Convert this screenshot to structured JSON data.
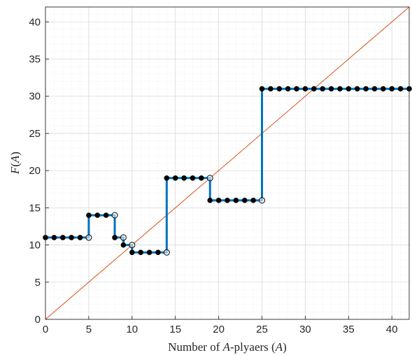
{
  "chart_data": {
    "type": "line",
    "xlabel": "Number of A-plyaers (A)",
    "xlabel_parts": {
      "prefix": "Number of ",
      "var1": "A",
      "middle": "-plyaers (",
      "var2": "A",
      "suffix": ")"
    },
    "ylabel": "F(A)",
    "ylabel_parts": {
      "fn": "F",
      "open": "(",
      "var": "A",
      "close": ")"
    },
    "xlim": [
      0,
      42
    ],
    "ylim": [
      0,
      42
    ],
    "xticks": [
      0,
      5,
      10,
      15,
      20,
      25,
      30,
      35,
      40
    ],
    "yticks": [
      0,
      5,
      10,
      15,
      20,
      25,
      30,
      35,
      40
    ],
    "grid": true,
    "minor_grid": true,
    "colors": {
      "step": "#0072bd",
      "diagonal": "#d95319",
      "filled_point": "#000000",
      "open_point_edge": "#000000",
      "open_point_fill": "#ffffff"
    },
    "series": [
      {
        "type": "step",
        "filled": [
          [
            0,
            11
          ],
          [
            1,
            11
          ],
          [
            2,
            11
          ],
          [
            3,
            11
          ],
          [
            4,
            11
          ],
          [
            5,
            14
          ],
          [
            6,
            14
          ],
          [
            7,
            14
          ],
          [
            8,
            11
          ],
          [
            9,
            10
          ],
          [
            10,
            9
          ],
          [
            11,
            9
          ],
          [
            12,
            9
          ],
          [
            13,
            9
          ],
          [
            14,
            19
          ],
          [
            15,
            19
          ],
          [
            16,
            19
          ],
          [
            17,
            19
          ],
          [
            18,
            19
          ],
          [
            19,
            16
          ],
          [
            20,
            16
          ],
          [
            21,
            16
          ],
          [
            22,
            16
          ],
          [
            23,
            16
          ],
          [
            24,
            16
          ],
          [
            25,
            31
          ],
          [
            26,
            31
          ],
          [
            27,
            31
          ],
          [
            28,
            31
          ],
          [
            29,
            31
          ],
          [
            30,
            31
          ],
          [
            31,
            31
          ],
          [
            32,
            31
          ],
          [
            33,
            31
          ],
          [
            34,
            31
          ],
          [
            35,
            31
          ],
          [
            36,
            31
          ],
          [
            37,
            31
          ],
          [
            38,
            31
          ],
          [
            39,
            31
          ],
          [
            40,
            31
          ],
          [
            41,
            31
          ],
          [
            42,
            31
          ]
        ],
        "open": [
          [
            5,
            11
          ],
          [
            8,
            14
          ],
          [
            9,
            11
          ],
          [
            10,
            10
          ],
          [
            14,
            9
          ],
          [
            19,
            19
          ],
          [
            25,
            16
          ]
        ]
      },
      {
        "type": "line",
        "points": [
          [
            0,
            0
          ],
          [
            42,
            42
          ]
        ]
      }
    ]
  }
}
